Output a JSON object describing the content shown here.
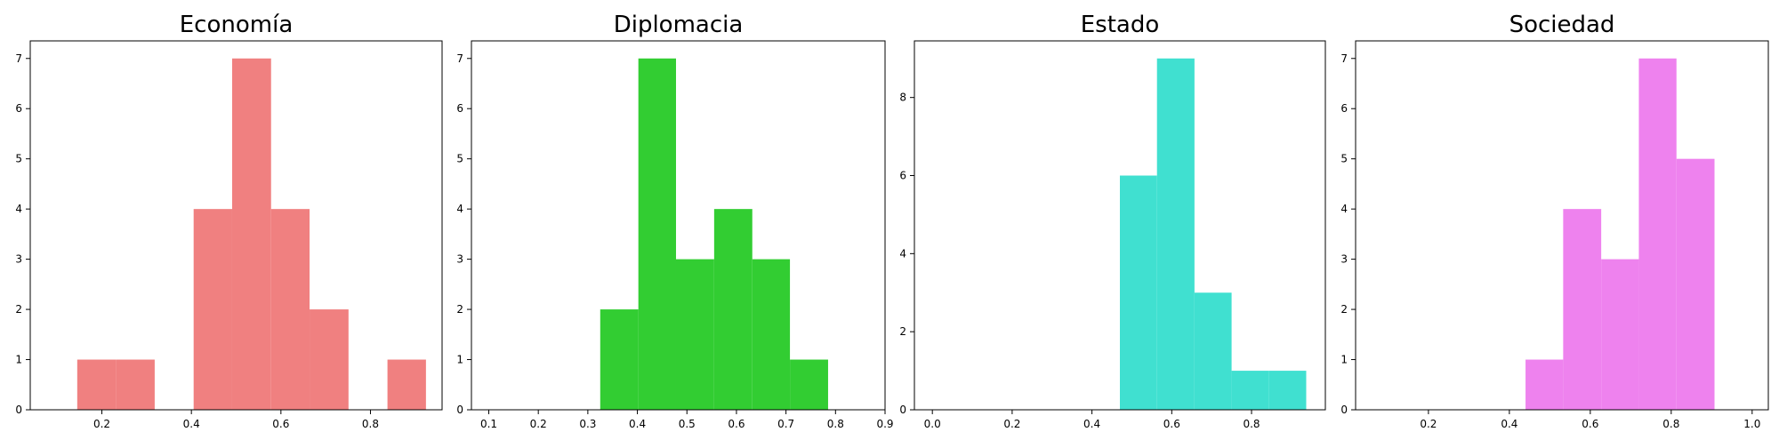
{
  "chart_data": [
    {
      "type": "bar",
      "title": "Economía",
      "color": "#F08080",
      "xlim": [
        0.04,
        0.96
      ],
      "ylim": [
        0,
        7.35
      ],
      "xticks": [
        0.2,
        0.4,
        0.6,
        0.8
      ],
      "xtick_labels": [
        "0.2",
        "0.4",
        "0.6",
        "0.8"
      ],
      "yticks": [
        0,
        1,
        2,
        3,
        4,
        5,
        6,
        7
      ],
      "ytick_labels": [
        "0",
        "1",
        "2",
        "3",
        "4",
        "5",
        "6",
        "7"
      ],
      "bins": [
        {
          "x0": 0.145,
          "x1": 0.232,
          "value": 1
        },
        {
          "x0": 0.232,
          "x1": 0.318,
          "value": 1
        },
        {
          "x0": 0.318,
          "x1": 0.405,
          "value": 0
        },
        {
          "x0": 0.405,
          "x1": 0.491,
          "value": 4
        },
        {
          "x0": 0.491,
          "x1": 0.578,
          "value": 7
        },
        {
          "x0": 0.578,
          "x1": 0.664,
          "value": 4
        },
        {
          "x0": 0.664,
          "x1": 0.751,
          "value": 2
        },
        {
          "x0": 0.751,
          "x1": 0.838,
          "value": 0
        },
        {
          "x0": 0.838,
          "x1": 0.924,
          "value": 1
        }
      ]
    },
    {
      "type": "bar",
      "title": "Diplomacia",
      "color": "#32CD32",
      "xlim": [
        0.065,
        0.9
      ],
      "ylim": [
        0,
        7.35
      ],
      "xticks": [
        0.1,
        0.2,
        0.3,
        0.4,
        0.5,
        0.6,
        0.7,
        0.8,
        0.9
      ],
      "xtick_labels": [
        "0.1",
        "0.2",
        "0.3",
        "0.4",
        "0.5",
        "0.6",
        "0.7",
        "0.8",
        "0.9"
      ],
      "yticks": [
        0,
        1,
        2,
        3,
        4,
        5,
        6,
        7
      ],
      "ytick_labels": [
        "0",
        "1",
        "2",
        "3",
        "4",
        "5",
        "6",
        "7"
      ],
      "bins": [
        {
          "x0": 0.325,
          "x1": 0.402,
          "value": 2
        },
        {
          "x0": 0.402,
          "x1": 0.478,
          "value": 7
        },
        {
          "x0": 0.478,
          "x1": 0.555,
          "value": 3
        },
        {
          "x0": 0.555,
          "x1": 0.632,
          "value": 4
        },
        {
          "x0": 0.632,
          "x1": 0.708,
          "value": 3
        },
        {
          "x0": 0.708,
          "x1": 0.785,
          "value": 1
        }
      ]
    },
    {
      "type": "bar",
      "title": "Estado",
      "color": "#40E0D0",
      "xlim": [
        -0.045,
        0.985
      ],
      "ylim": [
        0,
        9.45
      ],
      "xticks": [
        0.0,
        0.2,
        0.4,
        0.6,
        0.8
      ],
      "xtick_labels": [
        "0.0",
        "0.2",
        "0.4",
        "0.6",
        "0.8"
      ],
      "yticks": [
        0,
        2,
        4,
        6,
        8
      ],
      "ytick_labels": [
        "0",
        "2",
        "4",
        "6",
        "8"
      ],
      "bins": [
        {
          "x0": 0.47,
          "x1": 0.563,
          "value": 6
        },
        {
          "x0": 0.563,
          "x1": 0.657,
          "value": 9
        },
        {
          "x0": 0.657,
          "x1": 0.75,
          "value": 3
        },
        {
          "x0": 0.75,
          "x1": 0.843,
          "value": 1
        },
        {
          "x0": 0.843,
          "x1": 0.937,
          "value": 1
        }
      ]
    },
    {
      "type": "bar",
      "title": "Sociedad",
      "color": "#EE82EE",
      "xlim": [
        0.02,
        1.04
      ],
      "ylim": [
        0,
        7.35
      ],
      "xticks": [
        0.2,
        0.4,
        0.6,
        0.8,
        1.0
      ],
      "xtick_labels": [
        "0.2",
        "0.4",
        "0.6",
        "0.8",
        "1.0"
      ],
      "yticks": [
        0,
        1,
        2,
        3,
        4,
        5,
        6,
        7
      ],
      "ytick_labels": [
        "0",
        "1",
        "2",
        "3",
        "4",
        "5",
        "6",
        "7"
      ],
      "bins": [
        {
          "x0": 0.44,
          "x1": 0.533,
          "value": 1
        },
        {
          "x0": 0.533,
          "x1": 0.627,
          "value": 4
        },
        {
          "x0": 0.627,
          "x1": 0.72,
          "value": 3
        },
        {
          "x0": 0.72,
          "x1": 0.813,
          "value": 7
        },
        {
          "x0": 0.813,
          "x1": 0.907,
          "value": 5
        }
      ]
    }
  ]
}
